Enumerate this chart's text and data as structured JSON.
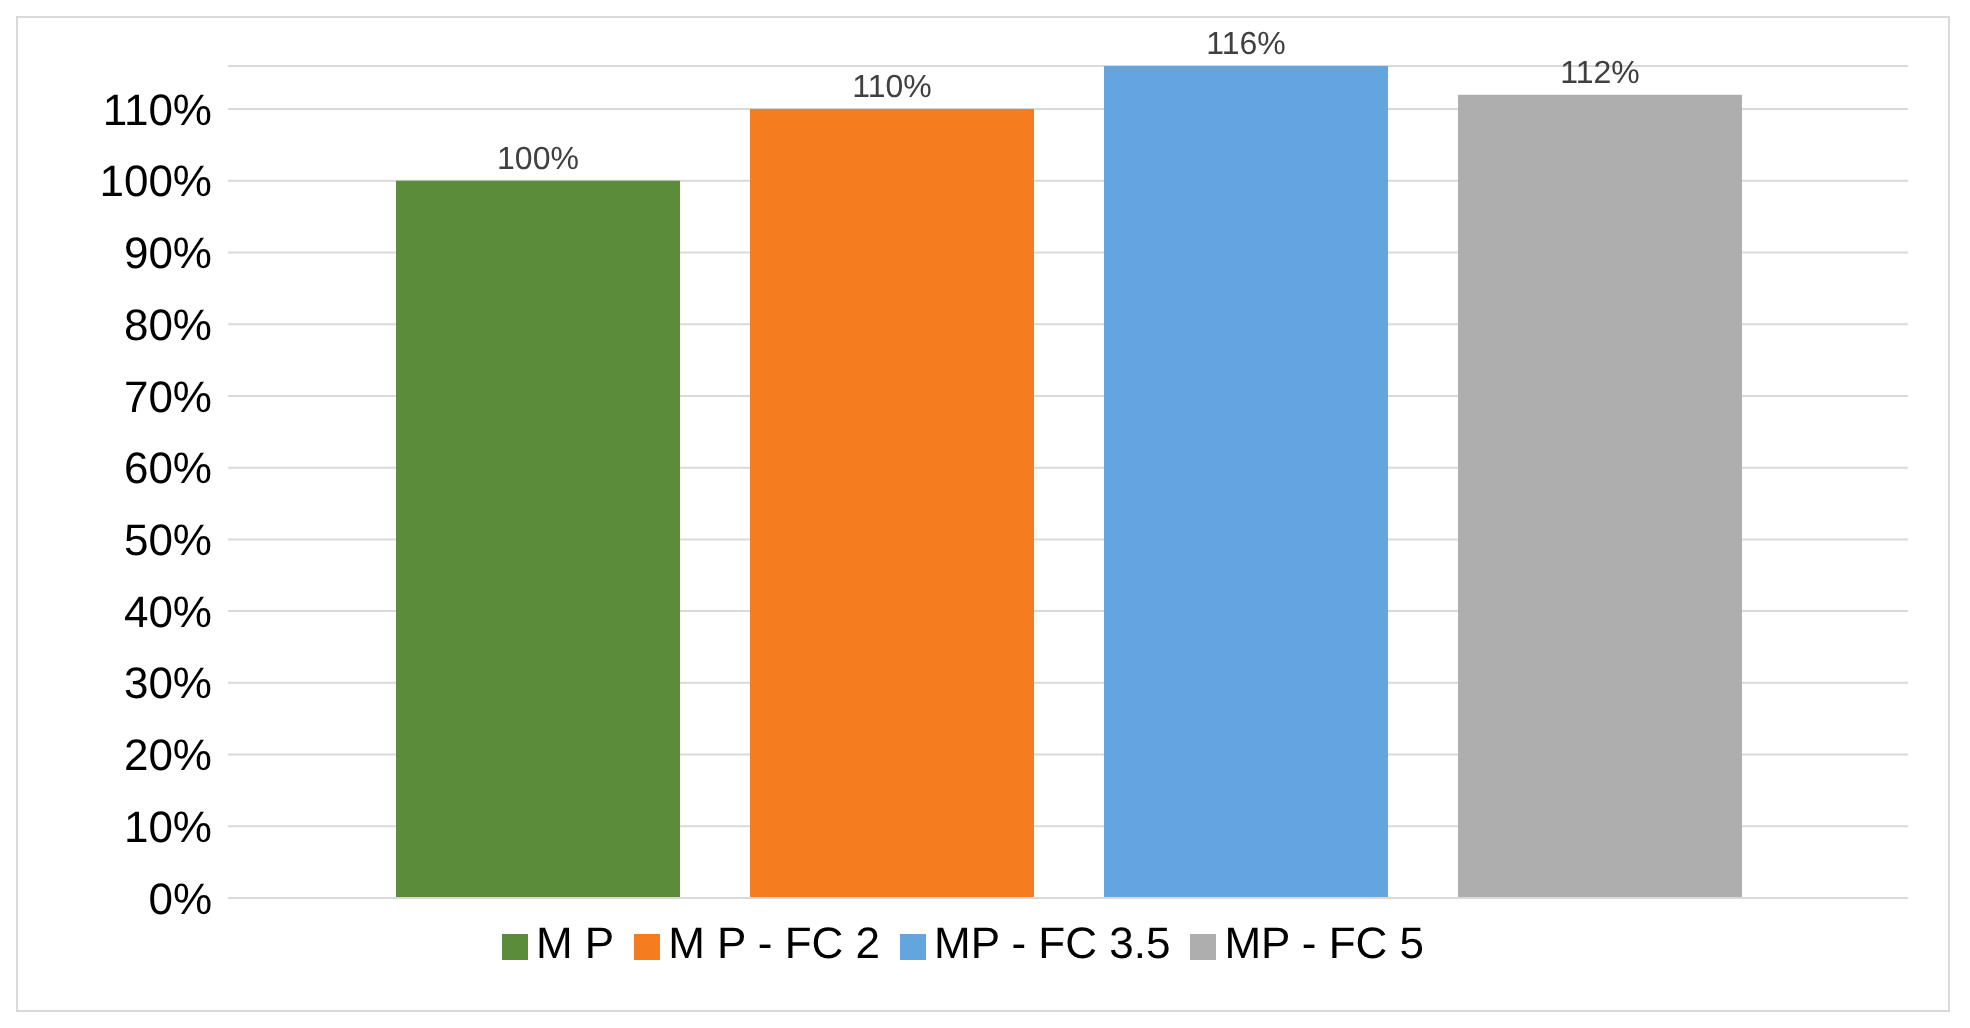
{
  "chart_data": {
    "type": "bar",
    "categories": [
      null
    ],
    "series": [
      {
        "name": "M P",
        "color": "#5b8c3a",
        "values": [
          100
        ],
        "value_labels": [
          "100%"
        ]
      },
      {
        "name": "M P - FC 2",
        "color": "#f57c1f",
        "values": [
          110
        ],
        "value_labels": [
          "110%"
        ]
      },
      {
        "name": "MP - FC 3.5",
        "color": "#64a5e0",
        "values": [
          116
        ],
        "value_labels": [
          "116%"
        ]
      },
      {
        "name": "MP - FC 5",
        "color": "#aeaeae",
        "values": [
          112
        ],
        "value_labels": [
          "112%"
        ]
      }
    ],
    "ylim": [
      0,
      116
    ],
    "yticks": [
      {
        "value": 0,
        "label": "0%"
      },
      {
        "value": 10,
        "label": "10%"
      },
      {
        "value": 20,
        "label": "20%"
      },
      {
        "value": 30,
        "label": "30%"
      },
      {
        "value": 40,
        "label": "40%"
      },
      {
        "value": 50,
        "label": "50%"
      },
      {
        "value": 60,
        "label": "60%"
      },
      {
        "value": 70,
        "label": "70%"
      },
      {
        "value": 80,
        "label": "80%"
      },
      {
        "value": 90,
        "label": "90%"
      },
      {
        "value": 100,
        "label": "100%"
      },
      {
        "value": 110,
        "label": "110%"
      }
    ],
    "grid": "y",
    "legend": "bottom",
    "tick_labels": "y"
  }
}
